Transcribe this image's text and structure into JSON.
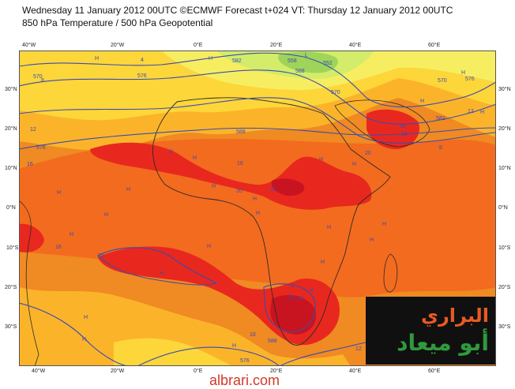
{
  "title": {
    "line1": "Wednesday 11 January 2012 00UTC ©ECMWF Forecast t+024 VT: Thursday 12 January 2012 00UTC",
    "line2": "850 hPa Temperature / 500 hPa Geopotential"
  },
  "axes": {
    "x_top": [
      "40°W",
      "20°W",
      "0°E",
      "20°E",
      "40°E",
      "60°E"
    ],
    "x_bottom": [
      "40°W",
      "20°W",
      "0°E",
      "20°E",
      "40°E",
      "60°E"
    ],
    "y_left": [
      "30°N",
      "20°N",
      "10°N",
      "0°N",
      "10°S",
      "20°S",
      "30°S"
    ],
    "y_right": [
      "30°N",
      "20°N",
      "10°N",
      "0°N",
      "10°S",
      "20°S",
      "30°S"
    ]
  },
  "map": {
    "colors": {
      "ocean": "#f08a22",
      "land_warm": "#f36b1e",
      "hot": "#e8281e",
      "very_hot": "#c81420",
      "cool": "#fbb42a",
      "cooler": "#fdd63a",
      "cold": "#f6ee60",
      "coldest": "#d3ec6a",
      "green": "#9fd45a",
      "contour": "#3b4bb0",
      "coast": "#2b2b2b"
    },
    "contour_labels": [
      "570",
      "576",
      "582",
      "588",
      "588",
      "582",
      "576",
      "570",
      "552",
      "558",
      "570",
      "576",
      "588",
      "576"
    ],
    "temp_labels": [
      "4",
      "8",
      "12",
      "16",
      "20",
      "20",
      "24",
      "20",
      "20",
      "16",
      "12",
      "8",
      "16",
      "20",
      "16",
      "12",
      "20",
      "24",
      "16",
      "12",
      "12"
    ],
    "pressure_marks": [
      "H",
      "H",
      "H",
      "H",
      "H",
      "H",
      "H",
      "H",
      "H",
      "H",
      "H",
      "H",
      "H",
      "H",
      "H",
      "H",
      "H",
      "H",
      "H",
      "H",
      "H",
      "H",
      "H",
      "H",
      "H",
      "H",
      "L",
      "L"
    ]
  },
  "logo": {
    "line1": "البراري",
    "line2": "أبو ميعاد"
  },
  "watermark": "albrari.com"
}
